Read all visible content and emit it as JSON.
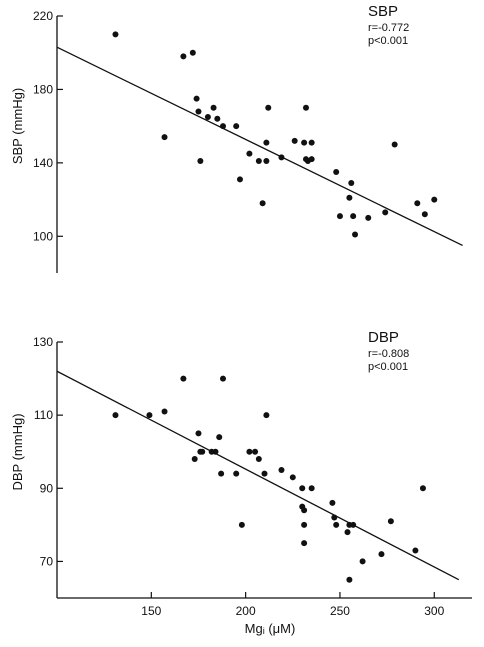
{
  "chart_data": [
    {
      "type": "scatter",
      "title": "SBP",
      "annotations": [
        "r=-0.772",
        "p<0.001"
      ],
      "ylabel": "SBP (mmHg)",
      "xlabel": "",
      "xlim": [
        100,
        320
      ],
      "ylim": [
        80,
        220
      ],
      "yticks": [
        100,
        140,
        180,
        220
      ],
      "grid": false,
      "regression_line": {
        "x": [
          100,
          315
        ],
        "y": [
          203,
          95
        ]
      },
      "points": [
        {
          "x": 131,
          "y": 210
        },
        {
          "x": 157,
          "y": 154
        },
        {
          "x": 167,
          "y": 198
        },
        {
          "x": 172,
          "y": 200
        },
        {
          "x": 174,
          "y": 175
        },
        {
          "x": 175,
          "y": 168
        },
        {
          "x": 176,
          "y": 141
        },
        {
          "x": 180,
          "y": 165
        },
        {
          "x": 183,
          "y": 170
        },
        {
          "x": 185,
          "y": 164
        },
        {
          "x": 188,
          "y": 160
        },
        {
          "x": 195,
          "y": 160
        },
        {
          "x": 197,
          "y": 131
        },
        {
          "x": 202,
          "y": 145
        },
        {
          "x": 207,
          "y": 141
        },
        {
          "x": 209,
          "y": 118
        },
        {
          "x": 211,
          "y": 141
        },
        {
          "x": 211,
          "y": 151
        },
        {
          "x": 212,
          "y": 170
        },
        {
          "x": 219,
          "y": 143
        },
        {
          "x": 226,
          "y": 152
        },
        {
          "x": 231,
          "y": 151
        },
        {
          "x": 232,
          "y": 170
        },
        {
          "x": 232,
          "y": 142
        },
        {
          "x": 233,
          "y": 141
        },
        {
          "x": 235,
          "y": 142
        },
        {
          "x": 235,
          "y": 151
        },
        {
          "x": 248,
          "y": 135
        },
        {
          "x": 250,
          "y": 111
        },
        {
          "x": 255,
          "y": 121
        },
        {
          "x": 256,
          "y": 129
        },
        {
          "x": 257,
          "y": 111
        },
        {
          "x": 258,
          "y": 101
        },
        {
          "x": 265,
          "y": 110
        },
        {
          "x": 274,
          "y": 113
        },
        {
          "x": 279,
          "y": 150
        },
        {
          "x": 291,
          "y": 118
        },
        {
          "x": 295,
          "y": 112
        },
        {
          "x": 300,
          "y": 120
        }
      ]
    },
    {
      "type": "scatter",
      "title": "DBP",
      "annotations": [
        "r=-0.808",
        "p<0.001"
      ],
      "ylabel": "DBP (mmHg)",
      "xlabel": "Mgᵢ (μM)",
      "xlim": [
        100,
        320
      ],
      "ylim": [
        60,
        130
      ],
      "xticks": [
        150,
        200,
        250,
        300
      ],
      "yticks": [
        70,
        90,
        110,
        130
      ],
      "grid": false,
      "regression_line": {
        "x": [
          100,
          313
        ],
        "y": [
          122,
          65
        ]
      },
      "points": [
        {
          "x": 131,
          "y": 110
        },
        {
          "x": 149,
          "y": 110
        },
        {
          "x": 157,
          "y": 111
        },
        {
          "x": 167,
          "y": 120
        },
        {
          "x": 173,
          "y": 98
        },
        {
          "x": 175,
          "y": 105
        },
        {
          "x": 176,
          "y": 100
        },
        {
          "x": 177,
          "y": 100
        },
        {
          "x": 182,
          "y": 100
        },
        {
          "x": 184,
          "y": 100
        },
        {
          "x": 186,
          "y": 104
        },
        {
          "x": 187,
          "y": 94
        },
        {
          "x": 188,
          "y": 120
        },
        {
          "x": 195,
          "y": 94
        },
        {
          "x": 198,
          "y": 80
        },
        {
          "x": 202,
          "y": 100
        },
        {
          "x": 205,
          "y": 100
        },
        {
          "x": 207,
          "y": 98
        },
        {
          "x": 210,
          "y": 94
        },
        {
          "x": 211,
          "y": 110
        },
        {
          "x": 219,
          "y": 95
        },
        {
          "x": 225,
          "y": 93
        },
        {
          "x": 230,
          "y": 90
        },
        {
          "x": 230,
          "y": 85
        },
        {
          "x": 231,
          "y": 84
        },
        {
          "x": 231,
          "y": 80
        },
        {
          "x": 231,
          "y": 75
        },
        {
          "x": 235,
          "y": 90
        },
        {
          "x": 246,
          "y": 86
        },
        {
          "x": 247,
          "y": 82
        },
        {
          "x": 248,
          "y": 80
        },
        {
          "x": 254,
          "y": 78
        },
        {
          "x": 255,
          "y": 80
        },
        {
          "x": 255,
          "y": 65
        },
        {
          "x": 257,
          "y": 80
        },
        {
          "x": 262,
          "y": 70
        },
        {
          "x": 272,
          "y": 72
        },
        {
          "x": 277,
          "y": 81
        },
        {
          "x": 290,
          "y": 73
        },
        {
          "x": 294,
          "y": 90
        }
      ]
    }
  ]
}
